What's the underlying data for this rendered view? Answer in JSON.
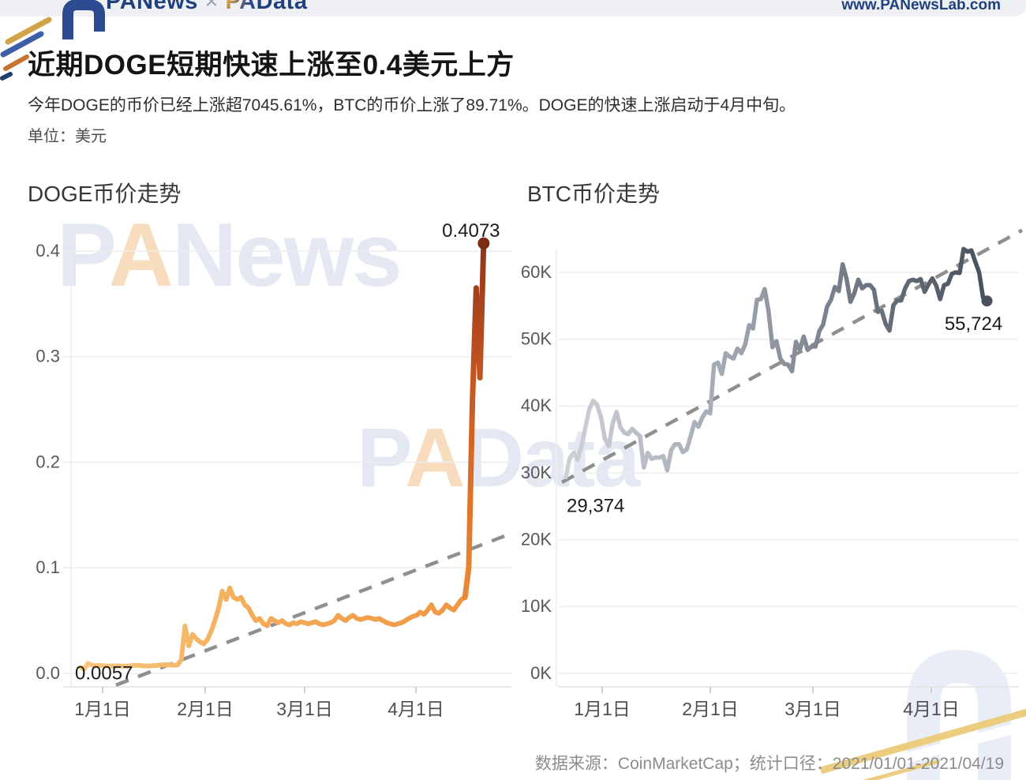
{
  "header": {
    "logo_left": "PANews",
    "logo_separator": "×",
    "logo_right": "PAData",
    "url": "www.PANewsLab.com"
  },
  "title": "近期DOGE短期快速上涨至0.4美元上方",
  "subtitle": "今年DOGE的币价已经上涨超7045.61%，BTC的币价上涨了89.71%。DOGE的快速上涨启动于4月中旬。",
  "unit_label": "单位：美元",
  "footer": "数据来源：CoinMarketCap；统计口径：2021/01/01-2021/04/19",
  "watermarks": {
    "top_p": "P",
    "top_a": "A",
    "top_rest": "News",
    "mid_p": "P",
    "mid_a": "A",
    "mid_rest": "Data"
  },
  "colors": {
    "doge_line_start": "#f8c77e",
    "doge_line_mid": "#ef9540",
    "doge_spike_top": "#8f3617",
    "doge_dot": "#7c2d14",
    "btc_line_start": "#cdd1d7",
    "btc_line_end": "#49515c",
    "trend_dash": "#8f8f8f",
    "gridline": "#ededed",
    "navy": "#21407e",
    "header_bar": "#eef0f3"
  },
  "chart_data": [
    {
      "id": "doge",
      "type": "line",
      "title": "DOGE币价走势",
      "x_tick_labels": [
        "1月1日",
        "2月1日",
        "3月1日",
        "4月1日"
      ],
      "y_ticks": [
        {
          "label": "0.0",
          "value": 0.0
        },
        {
          "label": "0.1",
          "value": 0.1
        },
        {
          "label": "0.2",
          "value": 0.2
        },
        {
          "label": "0.3",
          "value": 0.3
        },
        {
          "label": "0.4",
          "value": 0.4
        }
      ],
      "ylim": [
        -0.015,
        0.43
      ],
      "x_range": [
        "2021/01/01",
        "2021/04/19"
      ],
      "start_annotation": {
        "text": "0.0057",
        "day": 0,
        "value": 0.0057
      },
      "end_annotation": {
        "text": "0.4073",
        "day": 108,
        "value": 0.4073
      },
      "trend_line_day_value": [
        [
          9.5,
          -0.011
        ],
        [
          115,
          0.132
        ]
      ],
      "series": [
        {
          "name": "DOGE",
          "unit": "美元",
          "values": [
            0.0057,
            0.004,
            0.0095,
            0.0078,
            0.0072,
            0.0076,
            0.0073,
            0.007,
            0.007,
            0.0071,
            0.0072,
            0.007,
            0.0068,
            0.007,
            0.0074,
            0.0078,
            0.0075,
            0.0072,
            0.007,
            0.0072,
            0.0075,
            0.0078,
            0.008,
            0.0082,
            0.008,
            0.0078,
            0.008,
            0.013,
            0.045,
            0.026,
            0.037,
            0.033,
            0.03,
            0.028,
            0.032,
            0.04,
            0.05,
            0.062,
            0.078,
            0.07,
            0.081,
            0.072,
            0.07,
            0.072,
            0.065,
            0.062,
            0.055,
            0.05,
            0.052,
            0.047,
            0.045,
            0.052,
            0.05,
            0.048,
            0.05,
            0.047,
            0.046,
            0.048,
            0.047,
            0.049,
            0.048,
            0.047,
            0.048,
            0.049,
            0.047,
            0.046,
            0.047,
            0.048,
            0.05,
            0.055,
            0.052,
            0.05,
            0.053,
            0.055,
            0.052,
            0.051,
            0.052,
            0.053,
            0.052,
            0.051,
            0.052,
            0.05,
            0.048,
            0.047,
            0.046,
            0.047,
            0.048,
            0.05,
            0.052,
            0.054,
            0.055,
            0.058,
            0.056,
            0.06,
            0.065,
            0.058,
            0.057,
            0.06,
            0.065,
            0.062,
            0.06,
            0.065,
            0.07,
            0.072,
            0.1,
            0.26,
            0.365,
            0.28,
            0.4073
          ]
        }
      ]
    },
    {
      "id": "btc",
      "type": "line",
      "title": "BTC币价走势",
      "x_tick_labels": [
        "1月1日",
        "2月1日",
        "3月1日",
        "4月1日"
      ],
      "y_ticks": [
        {
          "label": "0K",
          "value": 0
        },
        {
          "label": "10K",
          "value": 10000
        },
        {
          "label": "20K",
          "value": 20000
        },
        {
          "label": "30K",
          "value": 30000
        },
        {
          "label": "40K",
          "value": 40000
        },
        {
          "label": "50K",
          "value": 50000
        },
        {
          "label": "60K",
          "value": 60000
        }
      ],
      "ylim": [
        -1500,
        66500
      ],
      "x_range": [
        "2021/01/01",
        "2021/04/19"
      ],
      "start_annotation": {
        "text": "29,374",
        "day": 0,
        "value": 29374
      },
      "end_annotation": {
        "text": "55,724",
        "day": 108,
        "value": 55724
      },
      "trend_line_day_value": [
        [
          -1,
          28600
        ],
        [
          117,
          66300
        ]
      ],
      "series": [
        {
          "name": "BTC",
          "unit": "美元",
          "values": [
            29374,
            32200,
            33000,
            32000,
            34000,
            36800,
            39500,
            40800,
            40200,
            38300,
            35100,
            34000,
            37400,
            39100,
            36800,
            36000,
            35800,
            36600,
            36000,
            35500,
            30800,
            33000,
            32100,
            32300,
            32300,
            32500,
            30400,
            33400,
            34300,
            34300,
            33100,
            33500,
            35500,
            37600,
            36900,
            38300,
            39200,
            38900,
            46200,
            46500,
            44800,
            47900,
            47400,
            47100,
            48600,
            47900,
            49200,
            52100,
            51600,
            55900,
            56000,
            57500,
            54100,
            48800,
            49700,
            47100,
            46300,
            46200,
            45200,
            49600,
            48400,
            50400,
            48400,
            48900,
            48900,
            51200,
            52200,
            54900,
            55900,
            57800,
            57200,
            61200,
            59000,
            55600,
            56900,
            58900,
            57600,
            58100,
            58100,
            57400,
            54100,
            54300,
            52300,
            51300,
            55100,
            55800,
            55800,
            57600,
            58700,
            58900,
            58700,
            59000,
            57100,
            58200,
            59100,
            58000,
            56000,
            58100,
            58300,
            59800,
            60000,
            59900,
            63500,
            63100,
            63300,
            61600,
            60000,
            56200,
            55724
          ]
        }
      ]
    }
  ]
}
